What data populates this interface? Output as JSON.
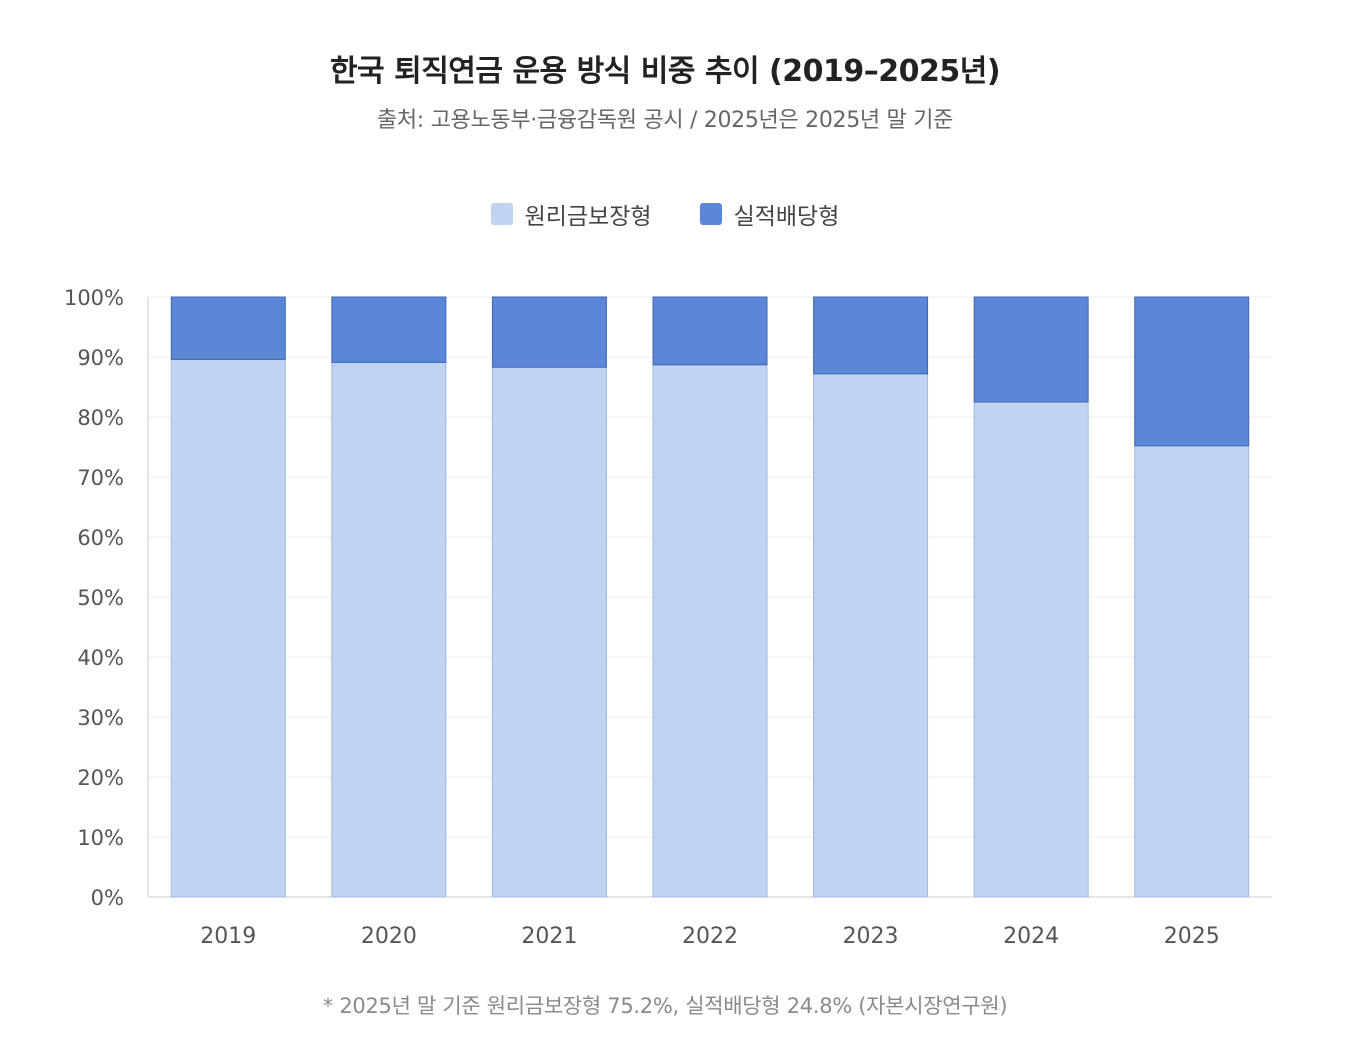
{
  "chart_data": {
    "type": "bar",
    "stacked": true,
    "title": "한국 퇴직연금 운용 방식 비중 추이 (2019–2025년)",
    "subtitle": "출처: 고용노동부·금융감독원 공시 / 2025년은 2025년 말 기준",
    "categories": [
      "2019",
      "2020",
      "2021",
      "2022",
      "2023",
      "2024",
      "2025"
    ],
    "series": [
      {
        "name": "원리금보장형",
        "color": "#c0d3f0",
        "values": [
          89.6,
          89.1,
          88.3,
          88.7,
          87.2,
          82.5,
          75.2
        ]
      },
      {
        "name": "실적배당형",
        "color": "#5b87d6",
        "values": [
          10.4,
          10.9,
          11.7,
          11.3,
          12.8,
          17.5,
          24.8
        ]
      }
    ],
    "yticks": [
      "0%",
      "10%",
      "20%",
      "30%",
      "40%",
      "50%",
      "60%",
      "70%",
      "80%",
      "90%",
      "100%"
    ],
    "ylim": [
      0,
      100
    ],
    "grid": true,
    "legend_position": "top-center",
    "xlabel": "",
    "ylabel": ""
  },
  "footnote": "* 2025년 말 기준 원리금보장형 75.2%, 실적배당형 24.8% (자본시장연구원)"
}
